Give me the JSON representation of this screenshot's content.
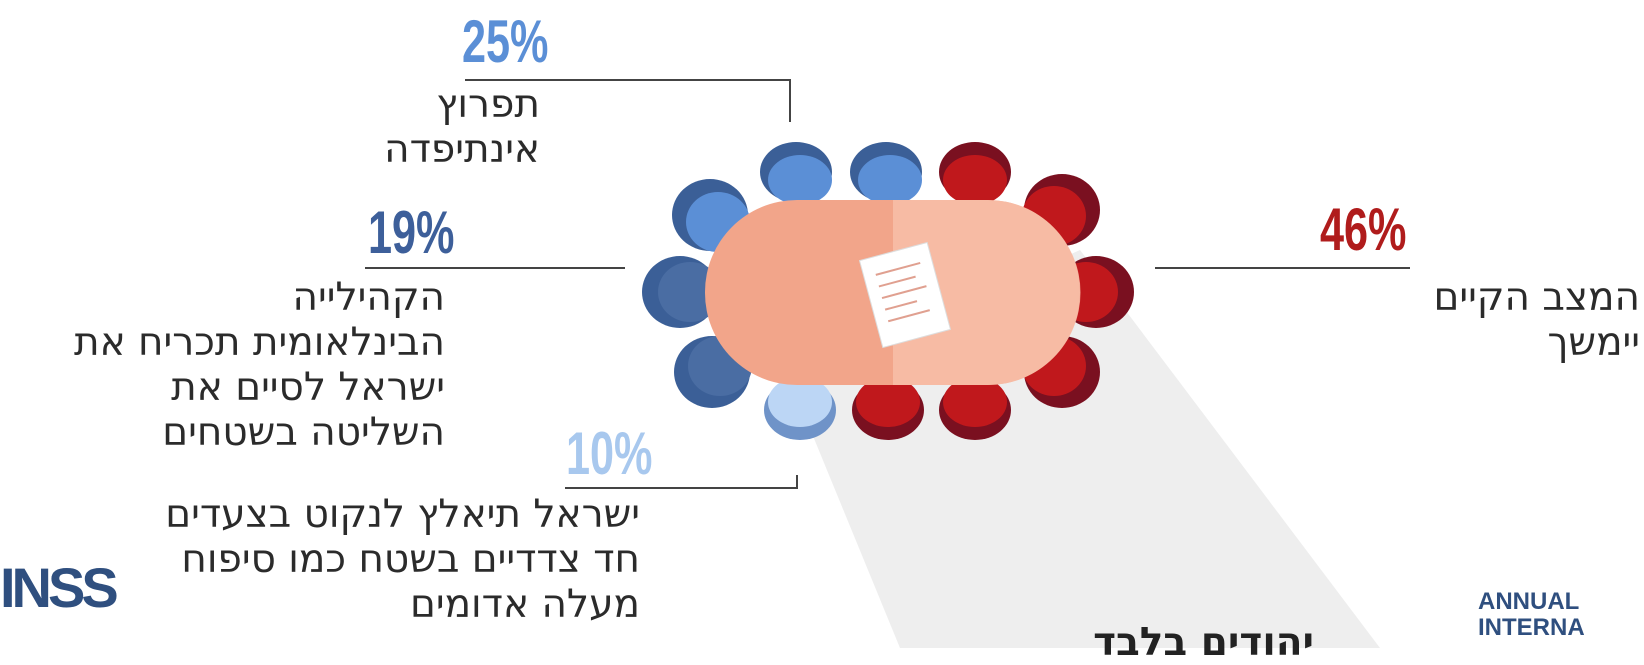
{
  "items": [
    {
      "percent": "25%",
      "lines": [
        "תפרוץ",
        "אינתיפדה"
      ]
    },
    {
      "percent": "19%",
      "lines": [
        "הקהילייה",
        "הבינלאומית תכריח את",
        "ישראל לסיים את",
        "השליטה בשטחים"
      ]
    },
    {
      "percent": "10%",
      "lines": [
        "ישראל תיאלץ לנקוט בצעדים",
        "חד צדדיים בשטח כמו סיפוח",
        "מעלה אדומים"
      ]
    },
    {
      "percent": "46%",
      "lines": [
        "המצב הקיים",
        "יימשך"
      ]
    }
  ],
  "footer": {
    "cut_text": "יהודים בלבד",
    "left_logo": "INSS",
    "right_logo_top": "ANNUAL",
    "right_logo_bottom": "INTERNA"
  }
}
